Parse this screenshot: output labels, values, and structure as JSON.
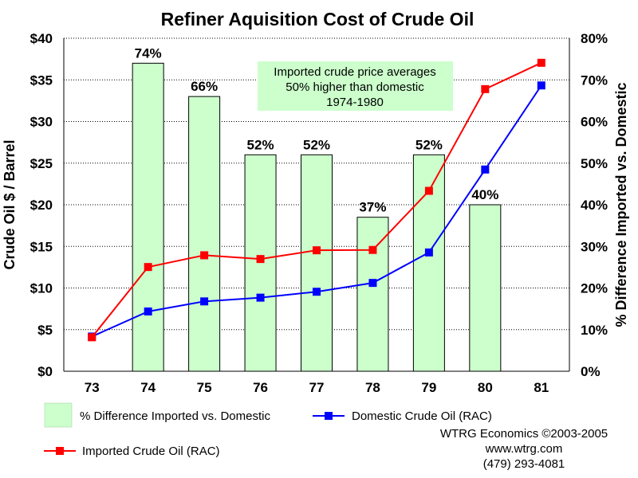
{
  "chart_data": {
    "type": "bar+line",
    "title": "Refiner Aquisition Cost of Crude Oil",
    "categories": [
      "73",
      "74",
      "75",
      "76",
      "77",
      "78",
      "79",
      "80",
      "81"
    ],
    "y_left": {
      "label": "Crude Oil $ / Barrel",
      "range": [
        0,
        40
      ],
      "ticks": [
        "$0",
        "$5",
        "$10",
        "$15",
        "$20",
        "$25",
        "$30",
        "$35",
        "$40"
      ]
    },
    "y_right": {
      "label": "% Difference Imported vs. Domestic",
      "range": [
        0,
        80
      ],
      "ticks": [
        "0%",
        "10%",
        "20%",
        "30%",
        "40%",
        "50%",
        "60%",
        "70%",
        "80%"
      ]
    },
    "grid": "horizontal dotted",
    "series": [
      {
        "name": "% Difference Imported vs. Domestic",
        "kind": "bar",
        "axis": "right",
        "color": "#ccffcc",
        "values": [
          null,
          74,
          66,
          52,
          52,
          37,
          52,
          40,
          null
        ],
        "labels": [
          "",
          "74%",
          "66%",
          "52%",
          "52%",
          "37%",
          "52%",
          "40%",
          ""
        ]
      },
      {
        "name": "Domestic Crude Oil (RAC)",
        "kind": "line",
        "axis": "left",
        "color": "#0000ff",
        "values": [
          4.17,
          7.18,
          8.39,
          8.84,
          9.55,
          10.61,
          14.27,
          24.23,
          34.33
        ]
      },
      {
        "name": "Imported Crude Oil (RAC)",
        "kind": "line",
        "axis": "left",
        "color": "#ff0000",
        "values": [
          4.08,
          12.52,
          13.93,
          13.48,
          14.53,
          14.57,
          21.67,
          33.89,
          37.05
        ]
      }
    ],
    "annotation": [
      "Imported crude price averages",
      "50%  higher than domestic",
      "1974-1980"
    ],
    "legend": {
      "items": [
        "% Difference Imported vs. Domestic",
        "Domestic Crude Oil (RAC)",
        "Imported Crude Oil (RAC)"
      ],
      "placement": "bottom"
    }
  },
  "credits": {
    "line1": "WTRG Economics  ©2003-2005",
    "line2": "www.wtrg.com",
    "line3": "(479) 293-4081"
  }
}
